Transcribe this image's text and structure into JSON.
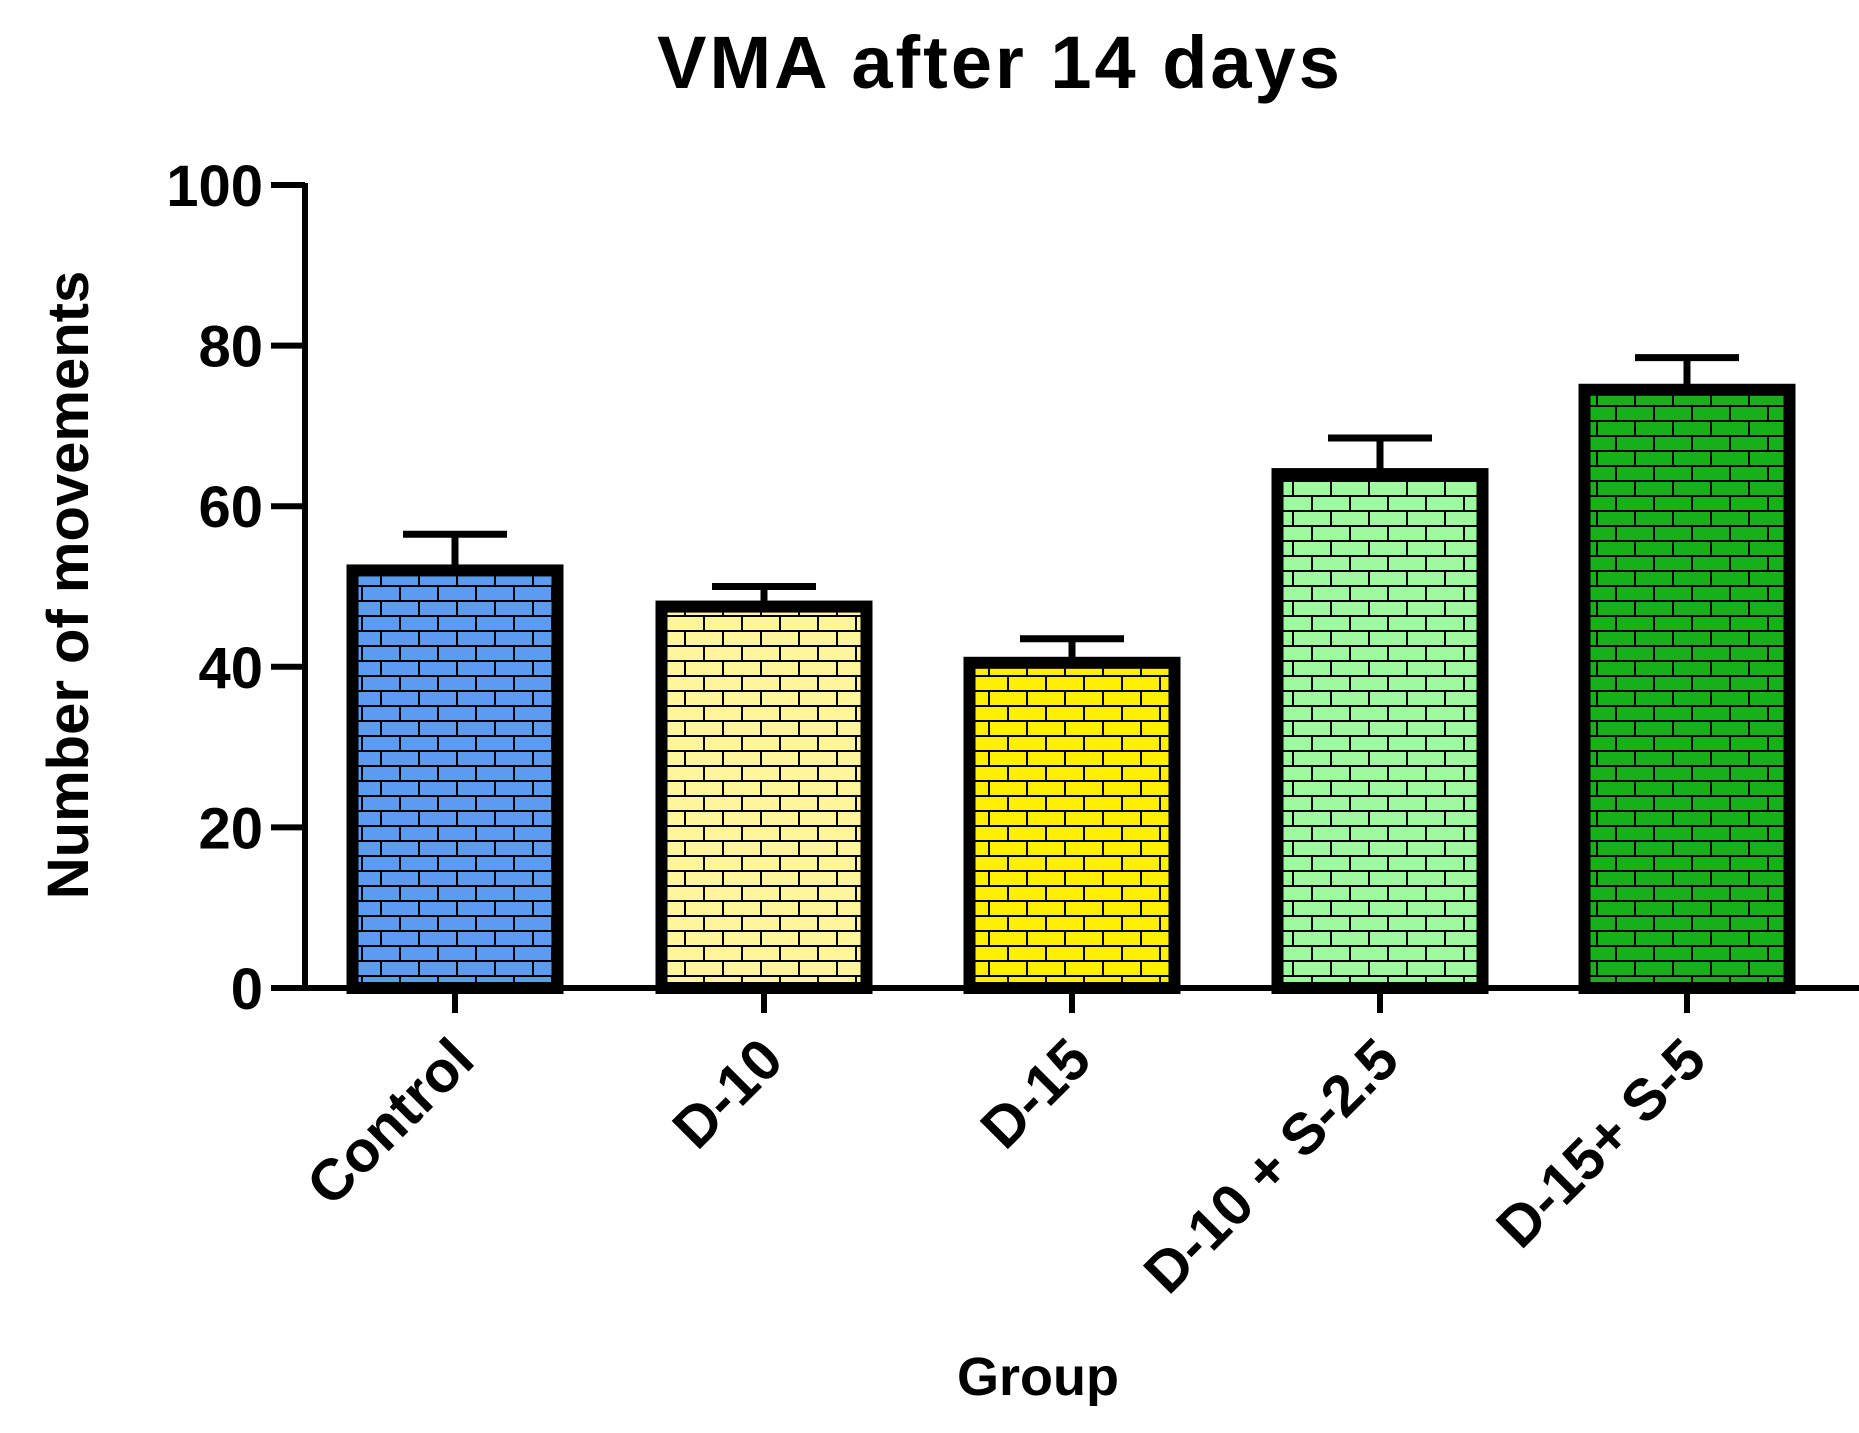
{
  "chart_data": {
    "type": "bar",
    "title": "VMA after 14 days",
    "xlabel": "Group",
    "ylabel": "Number of movements",
    "categories": [
      "Control",
      "D-10",
      "D-15",
      "D-10 + S-2.5",
      "D-15+ S-5"
    ],
    "values": [
      52,
      47.5,
      40.5,
      64,
      74.5
    ],
    "errors": [
      4.5,
      2.5,
      3,
      4.5,
      4
    ],
    "colors": [
      "#5B9CF0",
      "#FFF59A",
      "#FFF000",
      "#9EFA9E",
      "#18B018"
    ],
    "ylim": [
      0,
      100
    ],
    "yticks": [
      "0",
      "20",
      "40",
      "60",
      "80",
      "100"
    ],
    "grid": false,
    "legend": "none"
  }
}
